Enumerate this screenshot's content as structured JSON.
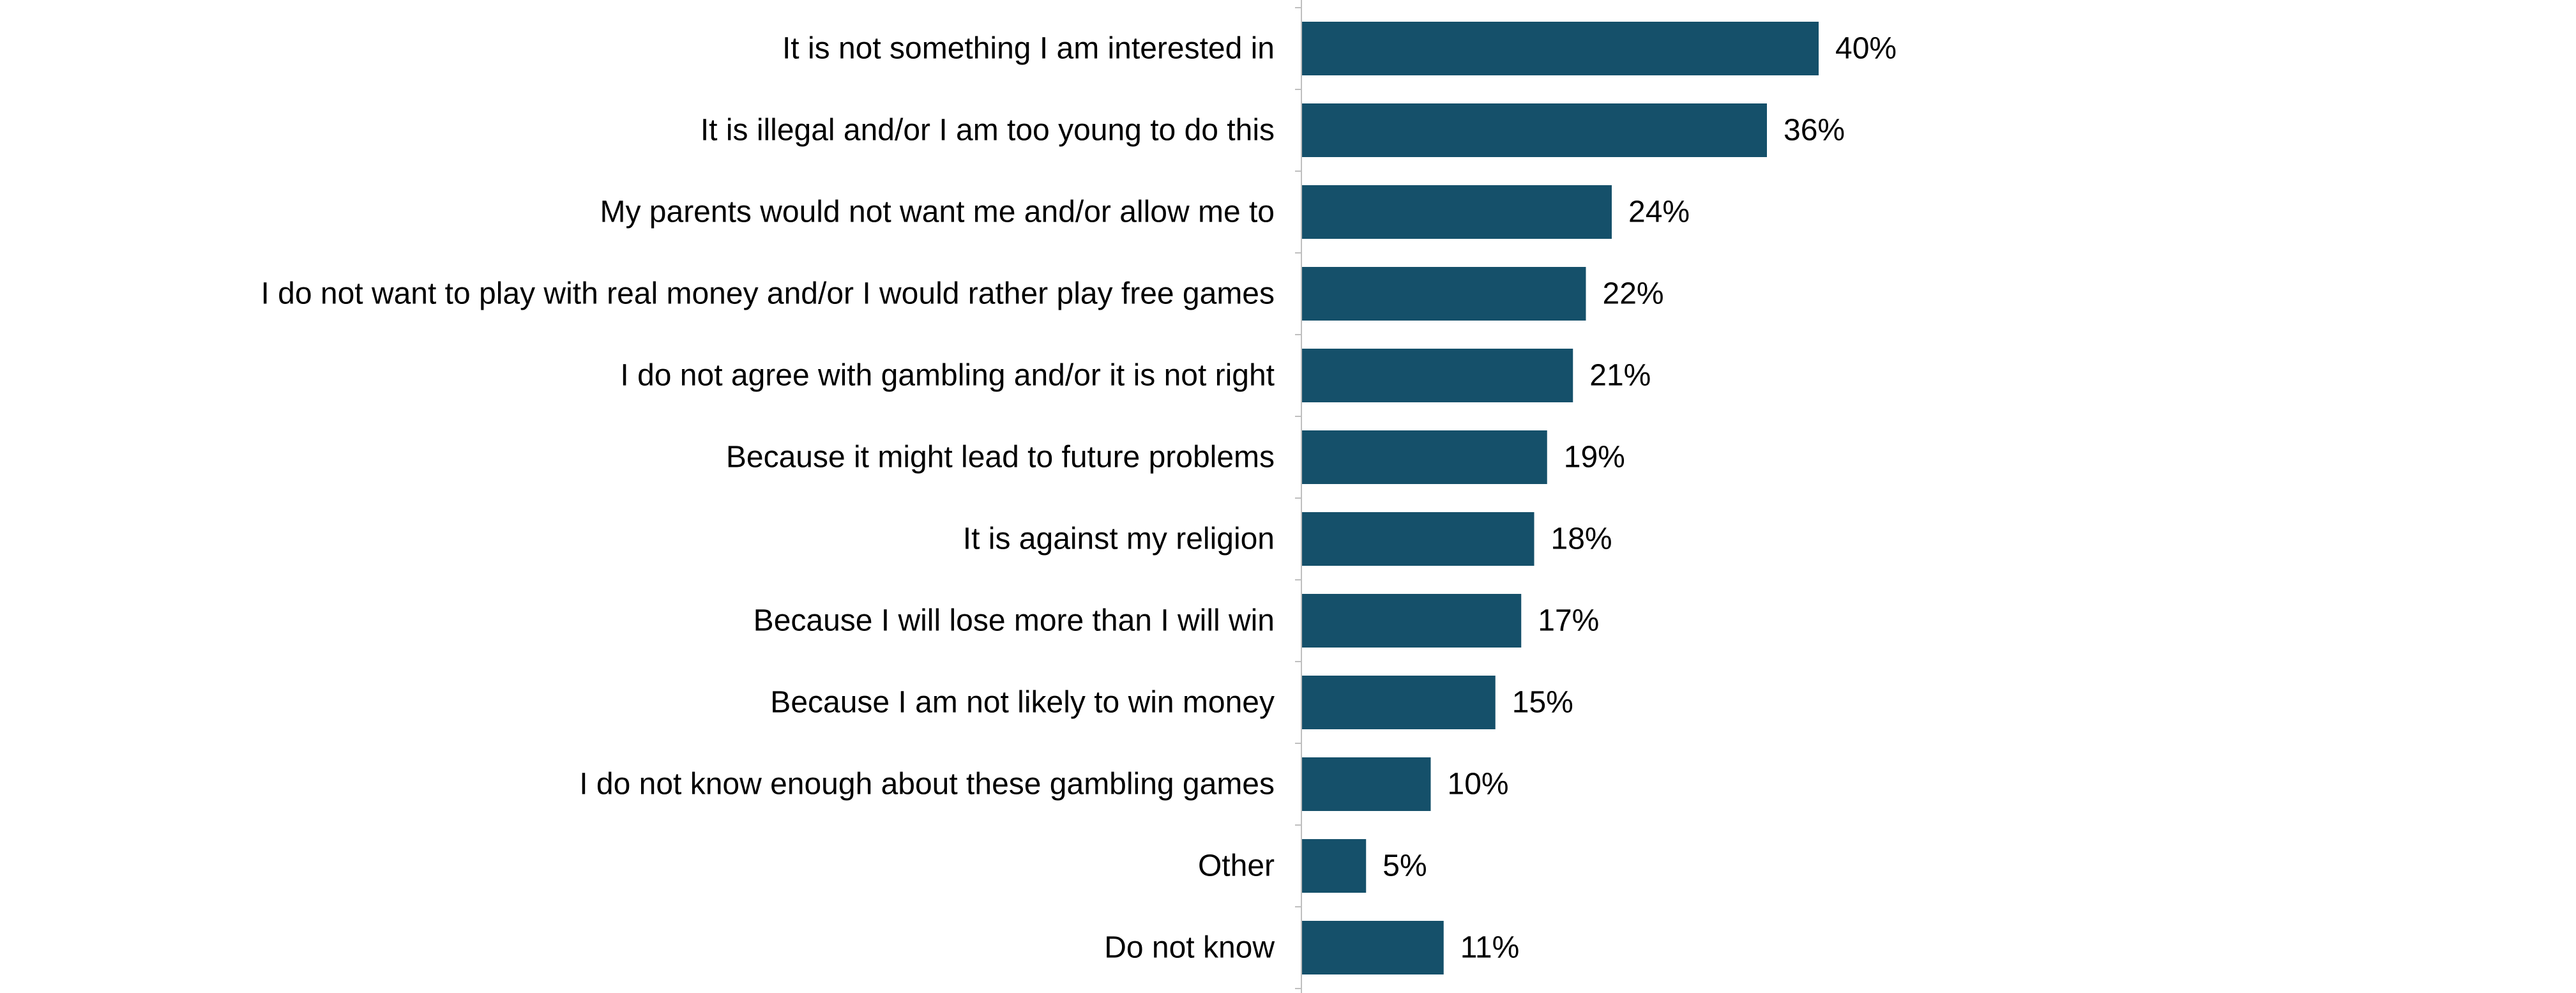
{
  "chart_data": {
    "type": "bar",
    "orientation": "horizontal",
    "categories": [
      "It is not something I am interested in",
      "It is illegal and/or I am too young to do this",
      "My parents would not want me and/or allow me to",
      "I do not want to play with real money and/or I would rather play free games",
      "I do not agree with gambling and/or it is not right",
      "Because it might lead to future problems",
      "It is against my religion",
      "Because I will lose more than I will win",
      "Because I am not likely to win money",
      "I do not know enough about these gambling games",
      "Other",
      "Do not know"
    ],
    "values": [
      40,
      36,
      24,
      22,
      21,
      19,
      18,
      17,
      15,
      10,
      5,
      11
    ],
    "value_labels": [
      "40%",
      "36%",
      "24%",
      "22%",
      "21%",
      "19%",
      "18%",
      "17%",
      "15%",
      "10%",
      "5%",
      "11%"
    ],
    "unit": "%",
    "xlim": [
      0,
      100
    ],
    "grid": false,
    "legend": "none",
    "bar_color": "#15506A",
    "axis_color": "#BFBFBF"
  }
}
